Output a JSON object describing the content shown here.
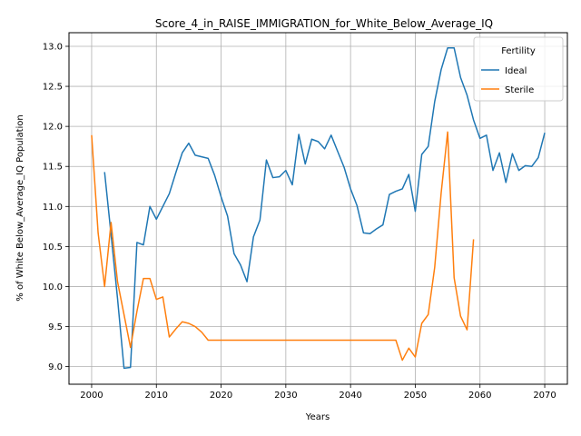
{
  "chart_data": {
    "type": "line",
    "title": "Score_4_in_RAISE_IMMIGRATION_for_White_Below_Average_IQ",
    "xlabel": "Years",
    "ylabel": "% of White Below_Average_IQ Population",
    "xlim": [
      1996.5,
      2073.5
    ],
    "ylim": [
      8.78,
      13.17
    ],
    "xticks": [
      2000,
      2010,
      2020,
      2030,
      2040,
      2050,
      2060,
      2070
    ],
    "yticks": [
      9.0,
      9.5,
      10.0,
      10.5,
      11.0,
      11.5,
      12.0,
      12.5,
      13.0
    ],
    "xtick_labels": [
      "2000",
      "2010",
      "2020",
      "2030",
      "2040",
      "2050",
      "2060",
      "2070"
    ],
    "ytick_labels": [
      "9.0",
      "9.5",
      "10.0",
      "10.5",
      "11.0",
      "11.5",
      "12.0",
      "12.5",
      "13.0"
    ],
    "grid": true,
    "legend": {
      "title": "Fertility",
      "placement": "top-right"
    },
    "series": [
      {
        "name": "Ideal",
        "color": "#1f77b4",
        "x": [
          2002,
          2003,
          2004,
          2005,
          2006,
          2007,
          2008,
          2009,
          2010,
          2011,
          2012,
          2013,
          2014,
          2015,
          2016,
          2017,
          2018,
          2019,
          2020,
          2021,
          2022,
          2023,
          2024,
          2025,
          2026,
          2027,
          2028,
          2029,
          2030,
          2031,
          2032,
          2033,
          2034,
          2035,
          2036,
          2037,
          2038,
          2039,
          2040,
          2041,
          2042,
          2043,
          2044,
          2045,
          2046,
          2047,
          2048,
          2049,
          2050,
          2051,
          2052,
          2053,
          2054,
          2055,
          2056,
          2057,
          2058,
          2059,
          2060,
          2061,
          2062,
          2063,
          2064,
          2065,
          2066,
          2067,
          2068,
          2069,
          2070
        ],
        "y": [
          11.43,
          10.65,
          9.85,
          8.98,
          8.99,
          10.55,
          10.52,
          11.0,
          10.84,
          11.0,
          11.16,
          11.42,
          11.67,
          11.79,
          11.64,
          11.62,
          11.6,
          11.39,
          11.12,
          10.88,
          10.41,
          10.27,
          10.06,
          10.62,
          10.83,
          11.58,
          11.36,
          11.37,
          11.45,
          11.27,
          11.9,
          11.53,
          11.84,
          11.81,
          11.72,
          11.89,
          11.69,
          11.49,
          11.22,
          11.01,
          10.67,
          10.66,
          10.72,
          10.77,
          11.15,
          11.19,
          11.22,
          11.4,
          10.94,
          11.65,
          11.75,
          12.31,
          12.71,
          12.98,
          12.98,
          12.61,
          12.39,
          12.08,
          11.85,
          11.89,
          11.45,
          11.67,
          11.3,
          11.66,
          11.45,
          11.51,
          11.5,
          11.61,
          11.92
        ]
      },
      {
        "name": "Sterile",
        "color": "#ff7f0e",
        "x": [
          2000,
          2001,
          2002,
          2003,
          2004,
          2005,
          2006,
          2007,
          2008,
          2009,
          2010,
          2011,
          2012,
          2013,
          2014,
          2015,
          2016,
          2017,
          2018,
          2019,
          2020,
          2021,
          2022,
          2023,
          2024,
          2025,
          2026,
          2027,
          2028,
          2029,
          2030,
          2031,
          2032,
          2033,
          2034,
          2035,
          2036,
          2037,
          2038,
          2039,
          2040,
          2041,
          2042,
          2043,
          2044,
          2045,
          2046,
          2047,
          2048,
          2049,
          2050,
          2051,
          2052,
          2053,
          2054,
          2055,
          2056,
          2057,
          2058,
          2059
        ],
        "y": [
          11.89,
          10.67,
          10.0,
          10.8,
          10.06,
          9.65,
          9.24,
          9.69,
          10.1,
          10.1,
          9.84,
          9.87,
          9.37,
          9.47,
          9.56,
          9.54,
          9.5,
          9.43,
          9.33,
          9.33,
          9.33,
          9.33,
          9.33,
          9.33,
          9.33,
          9.33,
          9.33,
          9.33,
          9.33,
          9.33,
          9.33,
          9.33,
          9.33,
          9.33,
          9.33,
          9.33,
          9.33,
          9.33,
          9.33,
          9.33,
          9.33,
          9.33,
          9.33,
          9.33,
          9.33,
          9.33,
          9.33,
          9.33,
          9.08,
          9.23,
          9.12,
          9.54,
          9.65,
          10.24,
          11.17,
          11.93,
          10.11,
          9.63,
          9.46,
          10.59
        ]
      }
    ]
  }
}
